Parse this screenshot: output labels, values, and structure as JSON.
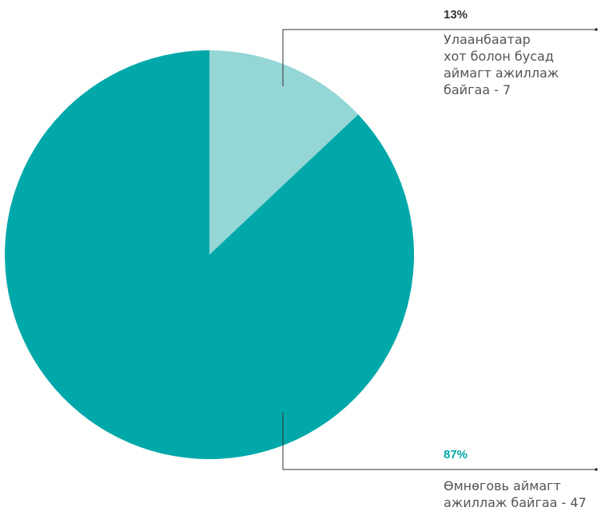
{
  "chart_data": {
    "type": "pie",
    "slices": [
      {
        "label": "Улаанбаатар\nхот болон бусад\nаймагт ажиллаж\nбайгаа - 7",
        "value": 7,
        "percent_label": "13%",
        "color": "#95d6d6",
        "label_color": "#333333"
      },
      {
        "label": "Өмнөговь аймагт\nажиллаж байгаа - 47",
        "value": 47,
        "percent_label": "87%",
        "color": "#00a8aa",
        "label_color": "#00a8aa"
      }
    ],
    "start_angle": "12 o'clock",
    "direction": "clockwise",
    "leader_line_color": "#333333"
  }
}
